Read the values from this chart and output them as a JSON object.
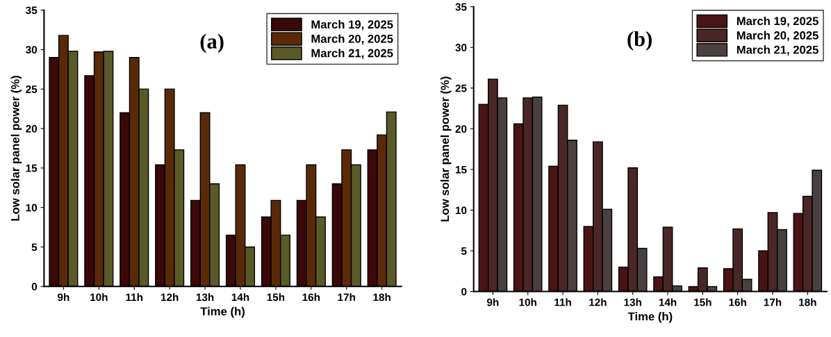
{
  "chart_data": [
    {
      "type": "bar",
      "xlabel": "Time (h)",
      "ylabel": "Low solar panel power (%)",
      "annotations": [
        "(a)"
      ],
      "categories": [
        "9h",
        "10h",
        "11h",
        "12h",
        "13h",
        "14h",
        "15h",
        "16h",
        "17h",
        "18h"
      ],
      "series": [
        {
          "name": "March 19, 2025",
          "color": "#3a0808",
          "values": [
            29,
            26.7,
            22,
            15.4,
            10.9,
            6.5,
            8.8,
            10.9,
            13,
            17.3
          ]
        },
        {
          "name": "March 20, 2025",
          "color": "#5a2a08",
          "values": [
            31.8,
            29.7,
            29,
            25,
            22,
            15.4,
            10.9,
            15.4,
            17.3,
            19.2
          ]
        },
        {
          "name": "March 21, 2025",
          "color": "#5a5a28",
          "values": [
            29.8,
            29.8,
            25,
            17.3,
            13,
            5,
            6.5,
            8.8,
            15.4,
            22.1
          ]
        }
      ],
      "ylim": [
        0,
        35
      ],
      "yticks": [
        0,
        5,
        10,
        15,
        20,
        25,
        30,
        35
      ],
      "legend": "top right",
      "grid": false
    },
    {
      "type": "bar",
      "xlabel": "Time (h)",
      "ylabel": "Low solar panel power (%)",
      "annotations": [
        "(b)"
      ],
      "categories": [
        "9h",
        "10h",
        "11h",
        "12h",
        "13h",
        "14h",
        "15h",
        "16h",
        "17h",
        "18h"
      ],
      "series": [
        {
          "name": "March 19, 2025",
          "color": "#4a1414",
          "values": [
            23,
            20.6,
            15.4,
            8,
            3,
            1.8,
            0.6,
            2.8,
            5,
            9.6
          ]
        },
        {
          "name": "March 20, 2025",
          "color": "#4a2626",
          "values": [
            26.1,
            23.8,
            22.9,
            18.4,
            15.2,
            7.9,
            2.9,
            7.7,
            9.7,
            11.7
          ]
        },
        {
          "name": "March 21, 2025",
          "color": "#4a4040",
          "values": [
            23.8,
            23.9,
            18.6,
            10.1,
            5.3,
            0.7,
            0.6,
            1.5,
            7.6,
            14.9
          ]
        }
      ],
      "ylim": [
        0,
        35
      ],
      "yticks": [
        0,
        5,
        10,
        15,
        20,
        25,
        30,
        35
      ],
      "legend": "top right",
      "grid": false
    }
  ]
}
